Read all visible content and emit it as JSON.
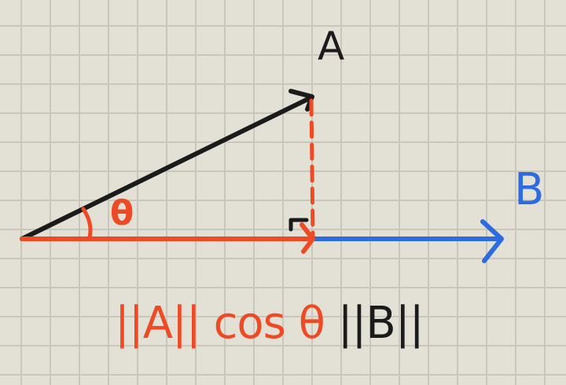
{
  "labels": {
    "vector_a": "A",
    "vector_b": "B",
    "angle": "θ"
  },
  "formula": {
    "red_part": "||A|| cos θ",
    "black_part": "||B||"
  },
  "colors": {
    "background": "#e3e0d6",
    "grid": "#c9c6bb",
    "vector_a": "#1b1b1b",
    "vector_b": "#2c6be0",
    "projection": "#ee4a24"
  }
}
